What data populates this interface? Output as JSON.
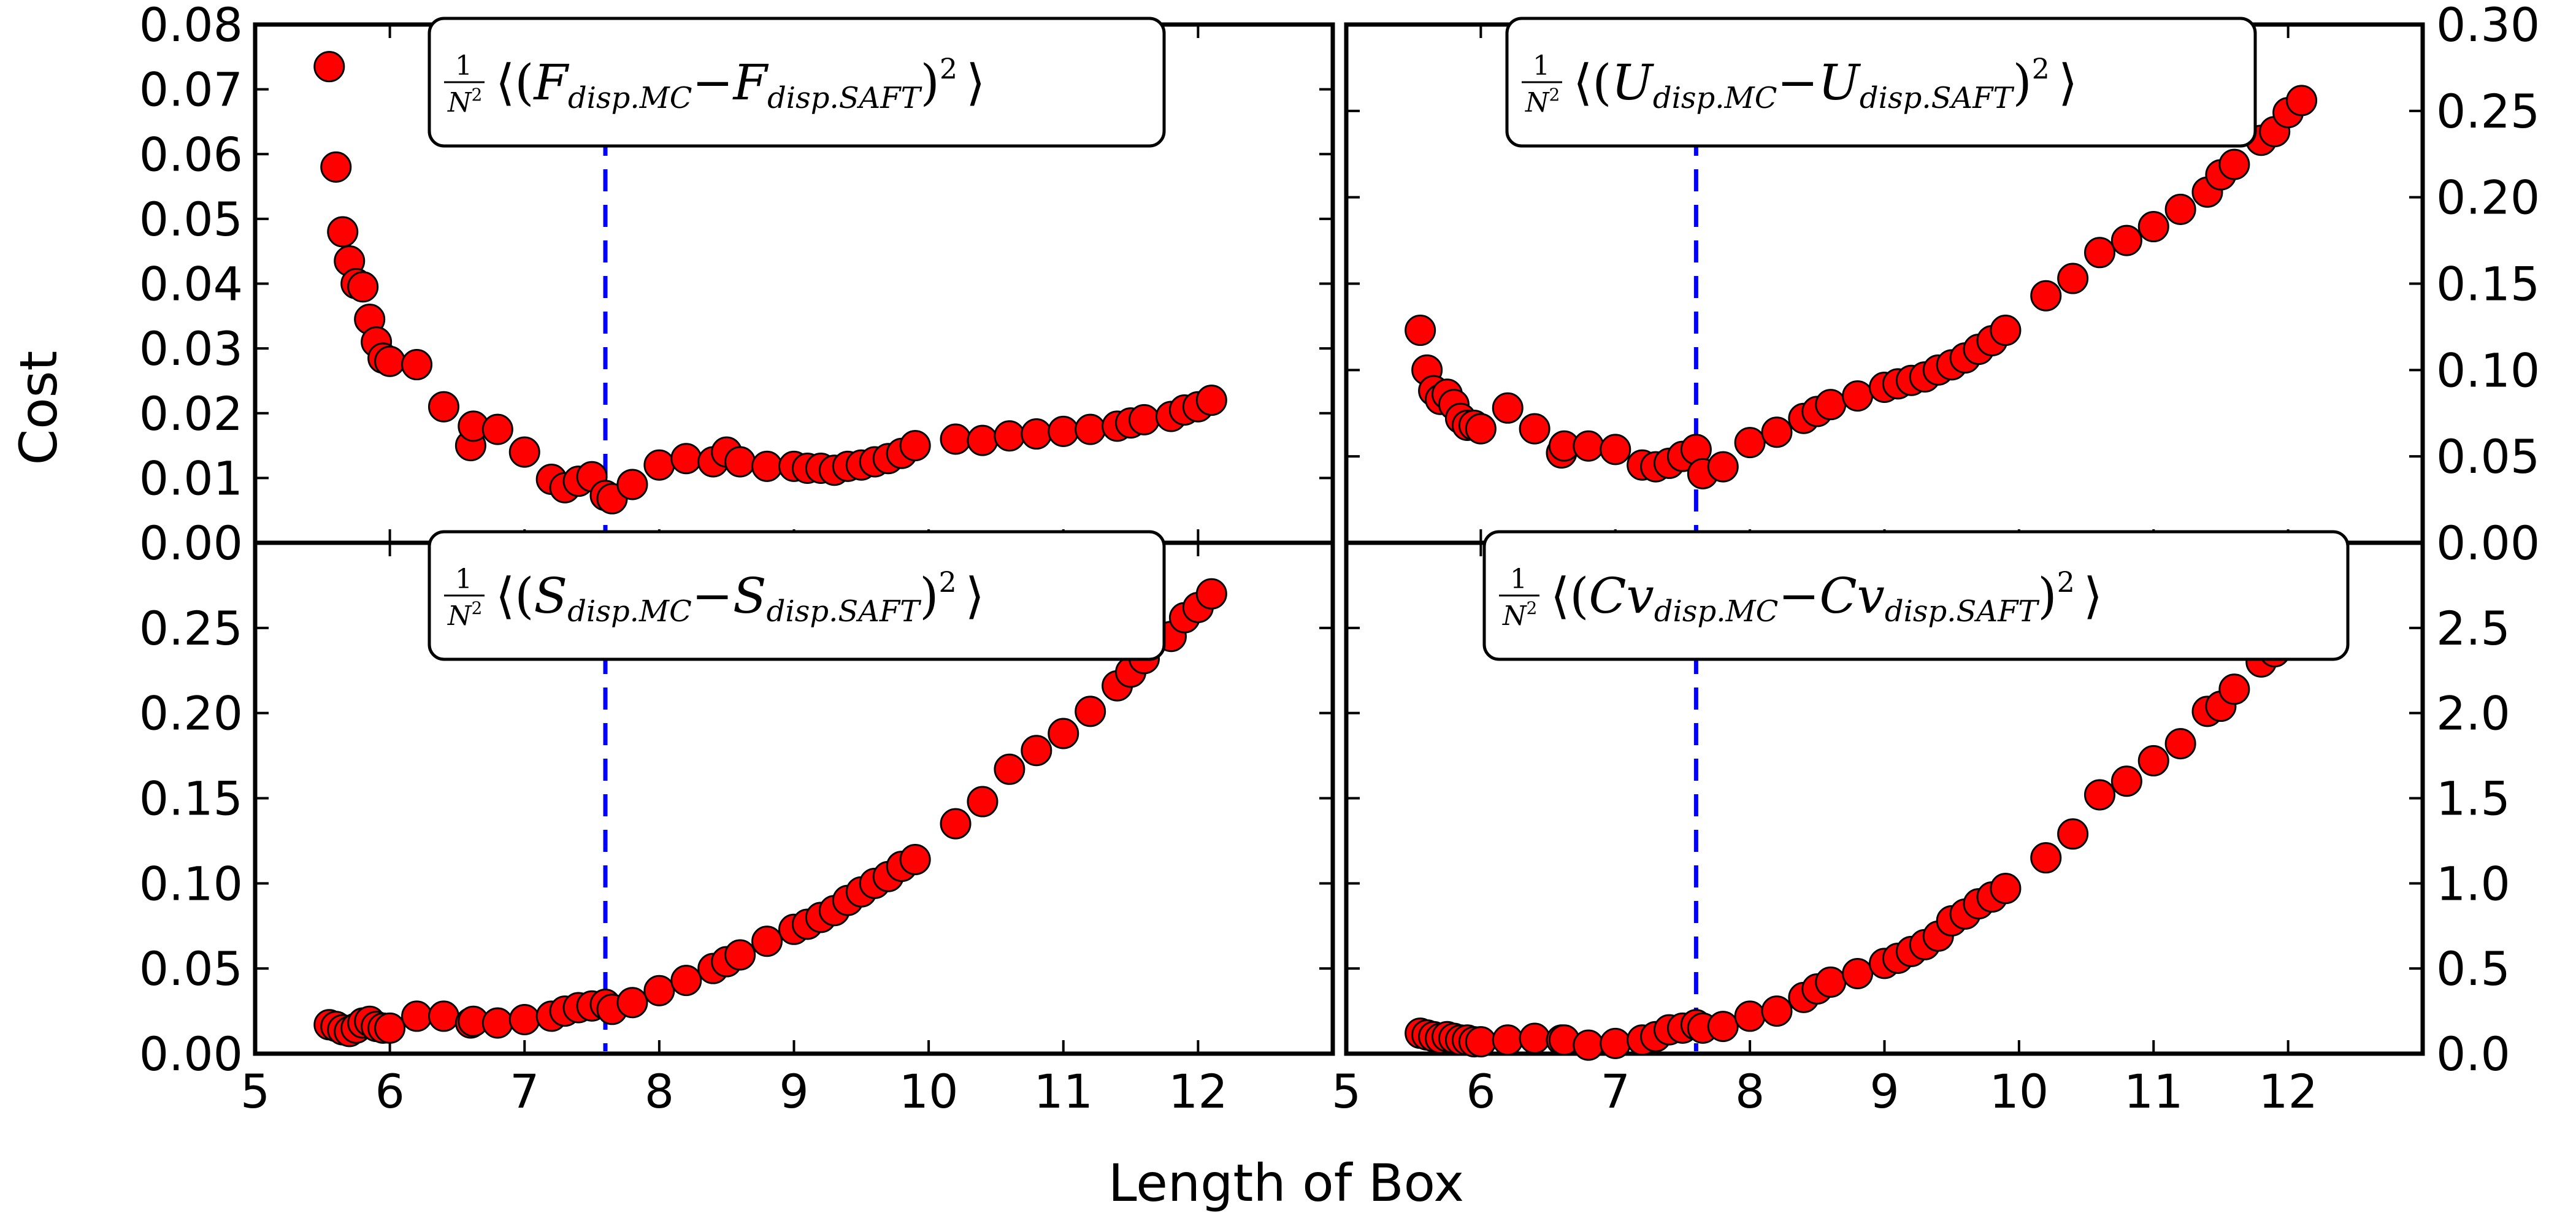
{
  "figure": {
    "xlabel": "Length of Box",
    "ylabel": "Cost",
    "marker_color": "#ff0000",
    "marker_edge": "#000000",
    "vline_color": "#0000ff",
    "vline_x": 7.6
  },
  "chart_data": [
    {
      "type": "scatter",
      "id": "F",
      "legend": {
        "mean_prefix": "1",
        "n_sym": "N",
        "n_exp": "2",
        "q": "F",
        "sub_a": "disp.MC",
        "sub_b": "disp.SAFT",
        "pow": "2"
      },
      "xlim": [
        5,
        13
      ],
      "ylim": [
        0,
        0.08
      ],
      "xticks": [
        5,
        6,
        7,
        8,
        9,
        10,
        11,
        12
      ],
      "xtick_labels": [
        "5",
        "6",
        "7",
        "8",
        "9",
        "10",
        "11",
        "12"
      ],
      "yticks": [
        0,
        0.01,
        0.02,
        0.03,
        0.04,
        0.05,
        0.06,
        0.07,
        0.08
      ],
      "ytick_labels": [
        "0.00",
        "0.01",
        "0.02",
        "0.03",
        "0.04",
        "0.05",
        "0.06",
        "0.07",
        "0.08"
      ],
      "x": [
        5.55,
        5.6,
        5.65,
        5.7,
        5.75,
        5.8,
        5.85,
        5.9,
        5.95,
        6.0,
        6.2,
        6.4,
        6.6,
        6.62,
        6.8,
        7.0,
        7.2,
        7.3,
        7.4,
        7.5,
        7.6,
        7.65,
        7.8,
        8.0,
        8.2,
        8.4,
        8.5,
        8.6,
        8.8,
        9.0,
        9.1,
        9.2,
        9.3,
        9.4,
        9.5,
        9.6,
        9.7,
        9.8,
        9.9,
        10.2,
        10.4,
        10.6,
        10.8,
        11.0,
        11.2,
        11.4,
        11.5,
        11.6,
        11.8,
        11.9,
        12.0,
        12.1
      ],
      "y": [
        0.0735,
        0.058,
        0.048,
        0.0435,
        0.04,
        0.0395,
        0.0345,
        0.031,
        0.0285,
        0.028,
        0.0275,
        0.021,
        0.015,
        0.018,
        0.0175,
        0.014,
        0.0098,
        0.0085,
        0.0095,
        0.0102,
        0.0073,
        0.0068,
        0.009,
        0.012,
        0.013,
        0.0125,
        0.014,
        0.0125,
        0.0118,
        0.0118,
        0.0115,
        0.0115,
        0.0112,
        0.0118,
        0.012,
        0.0125,
        0.013,
        0.0138,
        0.015,
        0.016,
        0.0158,
        0.0165,
        0.0168,
        0.0172,
        0.0175,
        0.018,
        0.0185,
        0.019,
        0.0195,
        0.0205,
        0.021,
        0.022
      ]
    },
    {
      "type": "scatter",
      "id": "U",
      "legend": {
        "mean_prefix": "1",
        "n_sym": "N",
        "n_exp": "2",
        "q": "U",
        "sub_a": "disp.MC",
        "sub_b": "disp.SAFT",
        "pow": "2"
      },
      "xlim": [
        5,
        13
      ],
      "ylim": [
        0,
        0.3
      ],
      "xticks": [
        5,
        6,
        7,
        8,
        9,
        10,
        11,
        12
      ],
      "xtick_labels": [
        "5",
        "6",
        "7",
        "8",
        "9",
        "10",
        "11",
        "12"
      ],
      "yticks": [
        0,
        0.05,
        0.1,
        0.15,
        0.2,
        0.25,
        0.3
      ],
      "ytick_labels": [
        "0.00",
        "0.05",
        "0.10",
        "0.15",
        "0.20",
        "0.25",
        "0.30"
      ],
      "x": [
        5.55,
        5.6,
        5.65,
        5.7,
        5.75,
        5.8,
        5.85,
        5.9,
        5.95,
        6.0,
        6.2,
        6.4,
        6.6,
        6.62,
        6.8,
        7.0,
        7.2,
        7.3,
        7.4,
        7.5,
        7.6,
        7.65,
        7.8,
        8.0,
        8.2,
        8.4,
        8.5,
        8.6,
        8.8,
        9.0,
        9.1,
        9.2,
        9.3,
        9.4,
        9.5,
        9.6,
        9.7,
        9.8,
        9.9,
        10.2,
        10.4,
        10.6,
        10.8,
        11.0,
        11.2,
        11.4,
        11.5,
        11.6,
        11.8,
        11.9,
        12.0,
        12.1
      ],
      "y": [
        0.123,
        0.1,
        0.088,
        0.083,
        0.086,
        0.08,
        0.072,
        0.068,
        0.068,
        0.066,
        0.078,
        0.066,
        0.052,
        0.056,
        0.056,
        0.054,
        0.045,
        0.044,
        0.046,
        0.05,
        0.054,
        0.04,
        0.044,
        0.058,
        0.064,
        0.072,
        0.076,
        0.08,
        0.085,
        0.09,
        0.092,
        0.094,
        0.096,
        0.1,
        0.103,
        0.107,
        0.112,
        0.117,
        0.123,
        0.143,
        0.153,
        0.168,
        0.175,
        0.183,
        0.193,
        0.203,
        0.213,
        0.219,
        0.233,
        0.238,
        0.249,
        0.256
      ]
    },
    {
      "type": "scatter",
      "id": "S",
      "legend": {
        "mean_prefix": "1",
        "n_sym": "N",
        "n_exp": "2",
        "q": "S",
        "sub_a": "disp.MC",
        "sub_b": "disp.SAFT",
        "pow": "2"
      },
      "xlim": [
        5,
        13
      ],
      "ylim": [
        0,
        0.3
      ],
      "xticks": [
        5,
        6,
        7,
        8,
        9,
        10,
        11,
        12
      ],
      "xtick_labels": [
        "5",
        "6",
        "7",
        "8",
        "9",
        "10",
        "11",
        "12"
      ],
      "yticks": [
        0,
        0.05,
        0.1,
        0.15,
        0.2,
        0.25
      ],
      "ytick_labels": [
        "0.00",
        "0.05",
        "0.10",
        "0.15",
        "0.20",
        "0.25"
      ],
      "x": [
        5.55,
        5.6,
        5.65,
        5.7,
        5.75,
        5.8,
        5.85,
        5.9,
        5.95,
        6.0,
        6.2,
        6.4,
        6.6,
        6.62,
        6.8,
        7.0,
        7.2,
        7.3,
        7.4,
        7.5,
        7.6,
        7.65,
        7.8,
        8.0,
        8.2,
        8.4,
        8.5,
        8.6,
        8.8,
        9.0,
        9.1,
        9.2,
        9.3,
        9.4,
        9.5,
        9.6,
        9.7,
        9.8,
        9.9,
        10.2,
        10.4,
        10.6,
        10.8,
        11.0,
        11.2,
        11.4,
        11.5,
        11.6,
        11.8,
        11.9,
        12.0,
        12.1
      ],
      "y": [
        0.017,
        0.016,
        0.014,
        0.013,
        0.015,
        0.018,
        0.019,
        0.016,
        0.015,
        0.015,
        0.022,
        0.022,
        0.018,
        0.019,
        0.018,
        0.02,
        0.022,
        0.025,
        0.027,
        0.028,
        0.029,
        0.026,
        0.03,
        0.037,
        0.043,
        0.05,
        0.054,
        0.058,
        0.066,
        0.073,
        0.076,
        0.08,
        0.084,
        0.09,
        0.095,
        0.1,
        0.104,
        0.11,
        0.114,
        0.135,
        0.148,
        0.167,
        0.178,
        0.188,
        0.201,
        0.216,
        0.224,
        0.232,
        0.245,
        0.256,
        0.262,
        0.27
      ]
    },
    {
      "type": "scatter",
      "id": "Cv",
      "legend": {
        "mean_prefix": "1",
        "n_sym": "N",
        "n_exp": "2",
        "q": "Cv",
        "sub_a": "disp.MC",
        "sub_b": "disp.SAFT",
        "pow": "2"
      },
      "xlim": [
        5,
        13
      ],
      "ylim": [
        0,
        3.0
      ],
      "xticks": [
        5,
        6,
        7,
        8,
        9,
        10,
        11,
        12
      ],
      "xtick_labels": [
        "5",
        "6",
        "7",
        "8",
        "9",
        "10",
        "11",
        "12"
      ],
      "yticks": [
        0,
        0.5,
        1.0,
        1.5,
        2.0,
        2.5
      ],
      "ytick_labels": [
        "0.0",
        "0.5",
        "1.0",
        "1.5",
        "2.0",
        "2.5"
      ],
      "x": [
        5.55,
        5.6,
        5.65,
        5.7,
        5.75,
        5.8,
        5.85,
        5.9,
        5.95,
        6.0,
        6.2,
        6.4,
        6.6,
        6.62,
        6.8,
        7.0,
        7.2,
        7.3,
        7.4,
        7.5,
        7.6,
        7.65,
        7.8,
        8.0,
        8.2,
        8.4,
        8.5,
        8.6,
        8.8,
        9.0,
        9.1,
        9.2,
        9.3,
        9.4,
        9.5,
        9.6,
        9.7,
        9.8,
        9.9,
        10.2,
        10.4,
        10.6,
        10.8,
        11.0,
        11.2,
        11.4,
        11.5,
        11.6,
        11.8,
        11.9,
        12.0,
        12.1
      ],
      "y": [
        0.12,
        0.11,
        0.1,
        0.09,
        0.1,
        0.09,
        0.08,
        0.08,
        0.07,
        0.07,
        0.08,
        0.09,
        0.08,
        0.08,
        0.05,
        0.06,
        0.08,
        0.1,
        0.14,
        0.15,
        0.17,
        0.15,
        0.16,
        0.22,
        0.25,
        0.33,
        0.38,
        0.42,
        0.47,
        0.53,
        0.56,
        0.6,
        0.64,
        0.69,
        0.78,
        0.82,
        0.88,
        0.92,
        0.97,
        1.15,
        1.29,
        1.52,
        1.6,
        1.72,
        1.82,
        2.01,
        2.04,
        2.14,
        2.3,
        2.36,
        2.45,
        2.59
      ]
    }
  ]
}
